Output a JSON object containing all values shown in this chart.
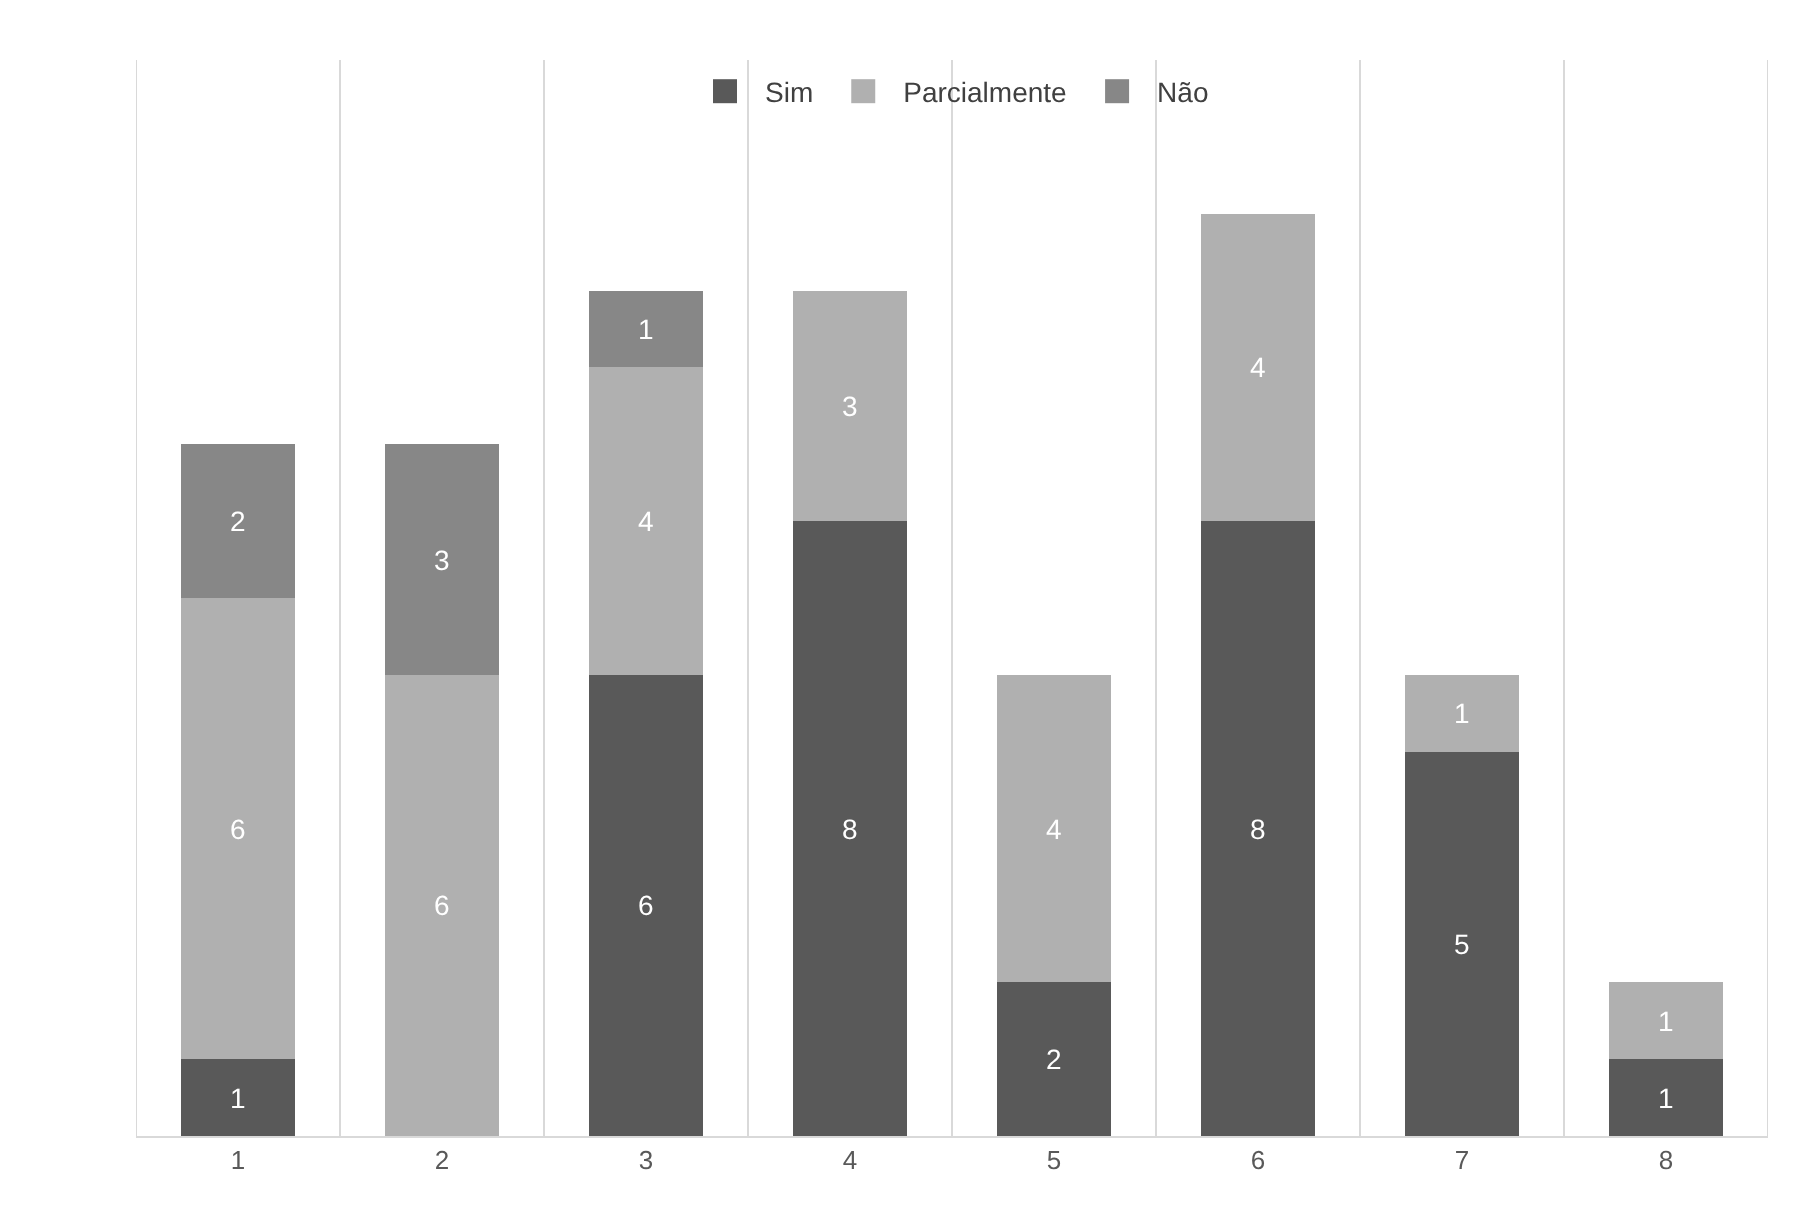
{
  "chart_data": {
    "type": "bar",
    "stacked": true,
    "categories": [
      "1",
      "2",
      "3",
      "4",
      "5",
      "6",
      "7",
      "8"
    ],
    "series": [
      {
        "name": "Sim",
        "color": "#595959",
        "values": [
          1,
          null,
          6,
          8,
          2,
          8,
          5,
          1
        ]
      },
      {
        "name": "Parcialmente",
        "color": "#b0b0b0",
        "values": [
          6,
          6,
          4,
          3,
          4,
          4,
          1,
          1
        ]
      },
      {
        "name": "Não",
        "color": "#878787",
        "values": [
          2,
          3,
          1,
          null,
          null,
          null,
          null,
          null
        ]
      }
    ],
    "ylim": [
      0,
      14
    ],
    "data_labels": true,
    "grid": "x",
    "legend": "top"
  }
}
